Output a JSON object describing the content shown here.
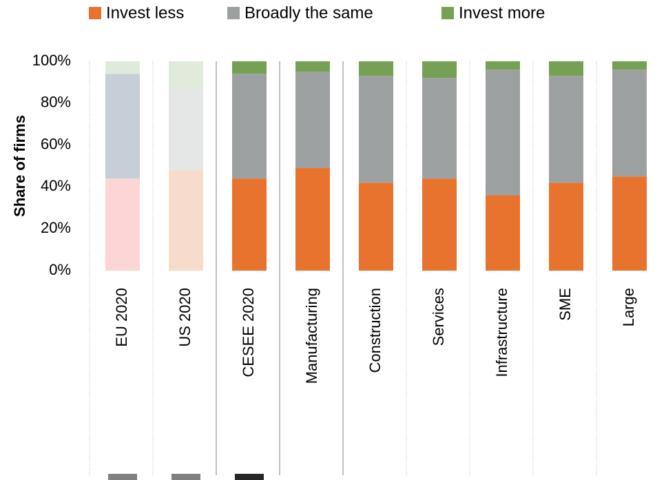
{
  "chart_data": {
    "type": "stacked_bar",
    "categories": [
      "EU 2020",
      "US 2020",
      "CESEE 2020",
      "Manufacturing",
      "Construction",
      "Services",
      "Infrastructure",
      "SME",
      "Large"
    ],
    "series": [
      {
        "name": "Invest less",
        "color": "#e8732e",
        "values": [
          44,
          48,
          44,
          49,
          42,
          44,
          36,
          42,
          45
        ],
        "colors": [
          "#fdd5d7",
          "#f8dccb",
          "#e8732e",
          "#e8732e",
          "#e8732e",
          "#e8732e",
          "#e8732e",
          "#e8732e",
          "#e8732e"
        ]
      },
      {
        "name": "Broadly the same",
        "color": "#9da0a1",
        "values": [
          50,
          39,
          50,
          46,
          51,
          48,
          60,
          51,
          51
        ],
        "colors": [
          "#c6ced7",
          "#e5e6e6",
          "#9da0a1",
          "#9da0a1",
          "#9da0a1",
          "#9da0a1",
          "#9da0a1",
          "#9da0a1",
          "#9da0a1"
        ]
      },
      {
        "name": "Invest more",
        "color": "#76a055",
        "values": [
          6,
          13,
          6,
          5,
          7,
          8,
          4,
          7,
          4
        ],
        "colors": [
          "#e0eadb",
          "#e1ebdb",
          "#76a055",
          "#76a055",
          "#76a055",
          "#76a055",
          "#76a055",
          "#76a055",
          "#76a055"
        ]
      }
    ],
    "y_label": "Share of firms",
    "ylim": [
      0,
      100
    ],
    "yticks": [
      {
        "value": 0,
        "label": "0%"
      },
      {
        "value": 20,
        "label": "20%"
      },
      {
        "value": 40,
        "label": "40%"
      },
      {
        "value": 60,
        "label": "60%"
      },
      {
        "value": 80,
        "label": "80%"
      },
      {
        "value": 100,
        "label": "100%"
      }
    ]
  }
}
